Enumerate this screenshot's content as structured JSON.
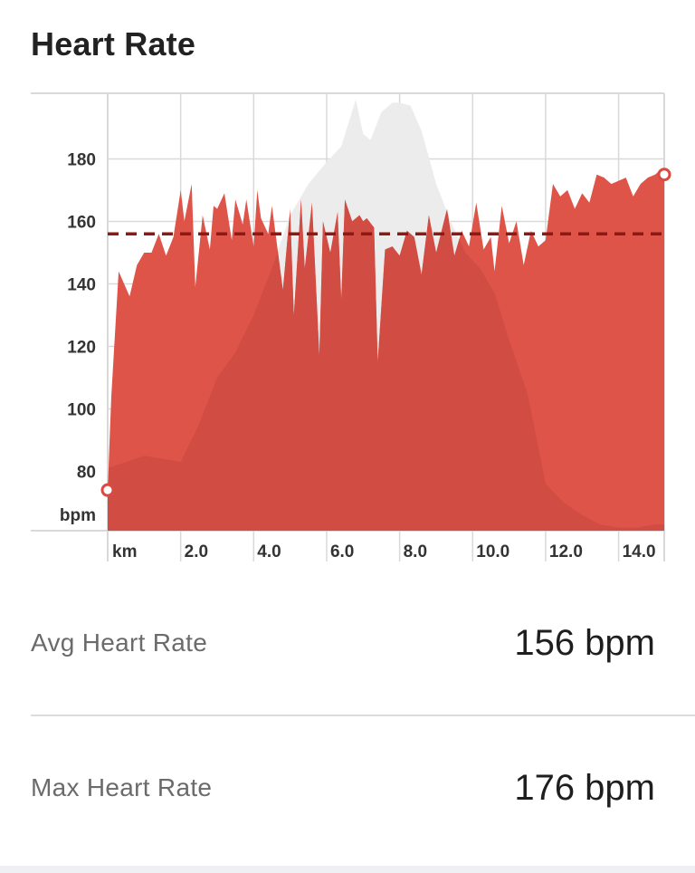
{
  "header": {
    "title": "Heart Rate"
  },
  "chart_data": {
    "type": "area",
    "title": "Heart Rate",
    "xlabel": "km",
    "ylabel": "bpm",
    "xlim": [
      0,
      15.25
    ],
    "ylim": [
      61,
      201
    ],
    "x_ticks": [
      2.0,
      4.0,
      6.0,
      8.0,
      10.0,
      12.0,
      14.0
    ],
    "x_tick_labels": [
      "2.0",
      "4.0",
      "6.0",
      "8.0",
      "10.0",
      "12.0",
      "14.0"
    ],
    "y_ticks": [
      80,
      100,
      120,
      140,
      160,
      180
    ],
    "grid": true,
    "average_line": 156,
    "colors": {
      "heart_rate": "#de5449",
      "elevation": "#ececec",
      "elevation_overlap": "#cc4a40",
      "average": "#8b1a14",
      "marker": "#d94b42",
      "grid": "#d9d9d9"
    },
    "series": [
      {
        "role": "heart_rate",
        "x": [
          0,
          0.1,
          0.3,
          0.6,
          0.8,
          1.0,
          1.2,
          1.4,
          1.6,
          1.8,
          2.0,
          2.1,
          2.3,
          2.4,
          2.6,
          2.8,
          2.9,
          3.0,
          3.2,
          3.4,
          3.5,
          3.7,
          3.8,
          4.0,
          4.1,
          4.2,
          4.4,
          4.5,
          4.8,
          5.0,
          5.1,
          5.3,
          5.4,
          5.6,
          5.8,
          5.9,
          6.1,
          6.3,
          6.4,
          6.5,
          6.7,
          6.9,
          7.0,
          7.1,
          7.3,
          7.4,
          7.6,
          7.8,
          8.0,
          8.2,
          8.4,
          8.6,
          8.8,
          9.0,
          9.3,
          9.5,
          9.7,
          9.9,
          10.1,
          10.3,
          10.5,
          10.6,
          10.8,
          11.0,
          11.2,
          11.4,
          11.6,
          11.8,
          12.0,
          12.2,
          12.4,
          12.6,
          12.8,
          13.0,
          13.2,
          13.4,
          13.6,
          13.8,
          14.0,
          14.2,
          14.4,
          14.6,
          14.8,
          15.0,
          15.1,
          15.25
        ],
        "values": [
          74,
          104,
          144,
          136,
          146,
          150,
          150,
          156,
          149,
          155,
          170,
          160,
          172,
          139,
          162,
          151,
          165,
          164,
          169,
          154,
          167,
          159,
          167,
          152,
          170,
          161,
          156,
          165,
          138,
          164,
          130,
          167,
          145,
          166,
          117,
          160,
          150,
          163,
          135,
          167,
          160,
          162,
          160,
          161,
          158,
          115,
          151,
          152,
          149,
          157,
          155,
          143,
          162,
          150,
          164,
          149,
          157,
          152,
          166,
          151,
          155,
          144,
          165,
          153,
          160,
          146,
          157,
          152,
          154,
          172,
          168,
          170,
          164,
          169,
          166,
          175,
          174,
          172,
          173,
          174,
          168,
          172,
          174,
          175,
          176,
          175
        ]
      },
      {
        "role": "elevation",
        "x": [
          0,
          0.5,
          1.0,
          1.5,
          2.0,
          2.5,
          3.0,
          3.5,
          4.0,
          4.5,
          5.0,
          5.5,
          6.0,
          6.4,
          6.8,
          7.0,
          7.2,
          7.5,
          7.8,
          8.0,
          8.3,
          8.6,
          9.0,
          9.4,
          9.8,
          10.2,
          10.6,
          11.0,
          11.5,
          12.0,
          12.5,
          13.0,
          13.5,
          14.0,
          14.5,
          15.0,
          15.25
        ],
        "values": [
          81,
          83,
          85,
          84,
          83,
          95,
          110,
          118,
          130,
          145,
          162,
          172,
          179,
          184,
          199,
          188,
          186,
          195,
          198,
          198,
          197,
          189,
          172,
          160,
          150,
          145,
          137,
          122,
          105,
          76,
          70,
          66,
          63,
          62,
          62,
          63,
          63
        ]
      }
    ]
  },
  "stats": {
    "avg_label": "Avg Heart Rate",
    "avg_value": "156 bpm",
    "max_label": "Max Heart Rate",
    "max_value": "176 bpm"
  }
}
